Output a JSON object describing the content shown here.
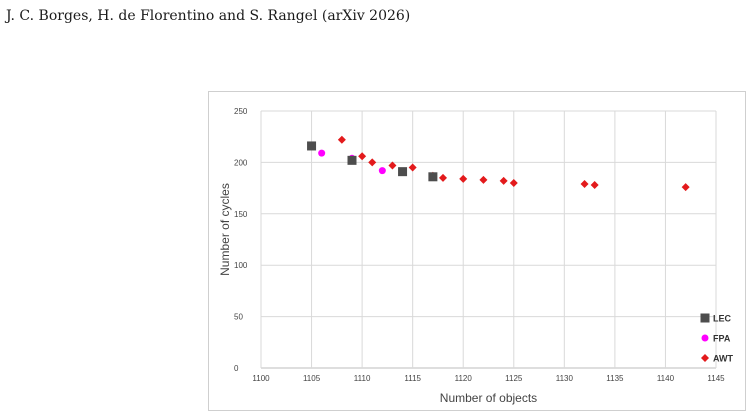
{
  "header": {
    "citation": "J. C. Borges, H. de Florentino and S. Rangel (arXiv 2026)"
  },
  "chart_data": {
    "type": "scatter",
    "title": "",
    "xlabel": "Number of objects",
    "ylabel": "Number of cycles",
    "xlim": [
      1100,
      1145
    ],
    "ylim": [
      0,
      250
    ],
    "x_ticks": [
      1100,
      1105,
      1110,
      1115,
      1120,
      1125,
      1130,
      1135,
      1140,
      1145
    ],
    "y_ticks": [
      0,
      50,
      100,
      150,
      200,
      250
    ],
    "grid": true,
    "legend_position": "right",
    "series": [
      {
        "name": "LEC",
        "marker": "square",
        "color": "#4d4d4d",
        "points": [
          [
            1105,
            216
          ],
          [
            1109,
            202
          ],
          [
            1114,
            191
          ],
          [
            1117,
            186
          ]
        ]
      },
      {
        "name": "FPA",
        "marker": "circle",
        "color": "#ff00ff",
        "points": [
          [
            1106,
            209
          ],
          [
            1109,
            204
          ],
          [
            1112,
            192
          ]
        ]
      },
      {
        "name": "AWT",
        "marker": "diamond",
        "color": "#e31a1c",
        "points": [
          [
            1108,
            222
          ],
          [
            1110,
            206
          ],
          [
            1111,
            200
          ],
          [
            1113,
            197
          ],
          [
            1115,
            195
          ],
          [
            1117,
            187
          ],
          [
            1118,
            185
          ],
          [
            1120,
            184
          ],
          [
            1122,
            183
          ],
          [
            1124,
            182
          ],
          [
            1125,
            180
          ],
          [
            1132,
            179
          ],
          [
            1133,
            178
          ],
          [
            1142,
            176
          ]
        ]
      }
    ]
  }
}
